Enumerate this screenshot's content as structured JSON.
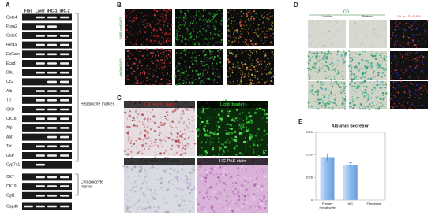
{
  "panels": {
    "a": {
      "label": "A",
      "lanes": [
        "Fibs",
        "Liver",
        "iHC-1",
        "iHC-2"
      ],
      "genes": [
        "Gata4",
        "Foxa2",
        "Gata6",
        "Hnf4a",
        "EpCam",
        "Ecad",
        "Dlk1",
        "Oc2",
        "Alb",
        "Ttr",
        "CK8",
        "CK18",
        "Afp",
        "Aat",
        "Tat",
        "G6P",
        "Cyp7a1",
        "CK7",
        "CK19",
        "Ggt1",
        "Gapdh"
      ],
      "hepatocyte": "Hepatocyte marker",
      "cholangiocyte": [
        "Cholaniocyte",
        "marker"
      ]
    },
    "b": {
      "label": "B",
      "row_labels": [
        "Alb/E-cad/DAPI",
        "Afp/Alb/DAPI"
      ]
    },
    "c": {
      "label": "C",
      "captions": [
        "Oil Red O stain",
        "Lipid droplet",
        "Fibroblast-PAS stain",
        "iHC-PAS stain"
      ]
    },
    "d": {
      "label": "D",
      "header": "ICG",
      "columns": [
        "Uptake",
        "Release",
        "Dil-ac-LDL/DAPI"
      ]
    },
    "e": {
      "label": "E"
    }
  },
  "chart_data": {
    "type": "bar",
    "title": "Albumin Secretion",
    "categories": [
      [
        "Primary",
        "Hepatocyte"
      ],
      [
        "iHC"
      ],
      [
        "Fibroblast"
      ]
    ],
    "values": [
      1900,
      1550,
      0
    ],
    "errors": [
      150,
      100,
      0
    ],
    "color": "#9cc3ee",
    "ylim": [
      0,
      3000
    ],
    "yticks": [
      0,
      1000,
      2000,
      3000
    ]
  }
}
